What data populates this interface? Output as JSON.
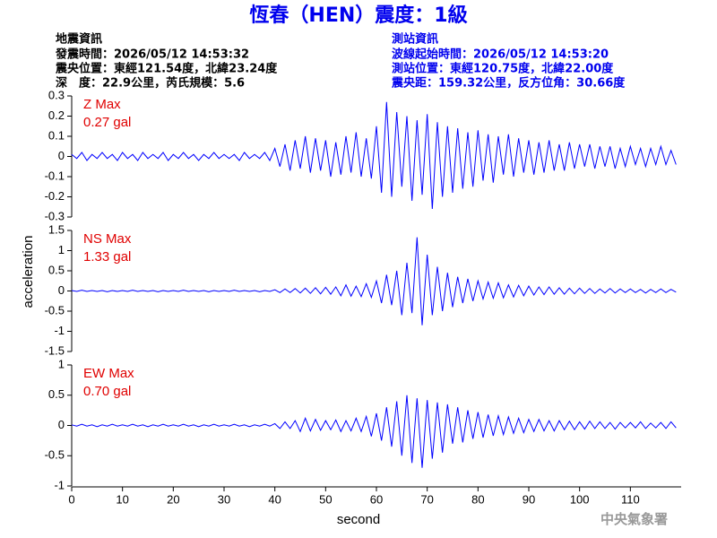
{
  "chart_data": {
    "type": "line",
    "title": "恆春（HEN）震度：1級",
    "info_left": {
      "heading": "地震資訊",
      "lines": [
        "發震時間：2026/05/12 14:53:32",
        "震央位置：東經121.54度，北緯23.24度",
        "深　度：22.9公里，芮氏規模：5.6"
      ]
    },
    "info_right": {
      "heading": "測站資訊",
      "lines": [
        "波線起始時間：2026/05/12 14:53:20",
        "測站位置：東經120.75度，北緯22.00度",
        "震央距：159.32公里，反方位角：30.66度"
      ]
    },
    "xlabel": "second",
    "ylabel": "acceleration",
    "footer": "中央氣象署",
    "xlim": [
      0,
      120
    ],
    "xticks": [
      0,
      10,
      20,
      30,
      40,
      50,
      60,
      70,
      80,
      90,
      100,
      110
    ],
    "x": [
      0,
      1,
      2,
      3,
      4,
      5,
      6,
      7,
      8,
      9,
      10,
      11,
      12,
      13,
      14,
      15,
      16,
      17,
      18,
      19,
      20,
      21,
      22,
      23,
      24,
      25,
      26,
      27,
      28,
      29,
      30,
      31,
      32,
      33,
      34,
      35,
      36,
      37,
      38,
      39,
      40,
      41,
      42,
      43,
      44,
      45,
      46,
      47,
      48,
      49,
      50,
      51,
      52,
      53,
      54,
      55,
      56,
      57,
      58,
      59,
      60,
      61,
      62,
      63,
      64,
      65,
      66,
      67,
      68,
      69,
      70,
      71,
      72,
      73,
      74,
      75,
      76,
      77,
      78,
      79,
      80,
      81,
      82,
      83,
      84,
      85,
      86,
      87,
      88,
      89,
      90,
      91,
      92,
      93,
      94,
      95,
      96,
      97,
      98,
      99,
      100,
      101,
      102,
      103,
      104,
      105,
      106,
      107,
      108,
      109,
      110,
      111,
      112,
      113,
      114,
      115,
      116,
      117,
      118,
      119
    ],
    "panels": [
      {
        "annotation": [
          "Z Max",
          "0.27 gal"
        ],
        "ylim": [
          -0.3,
          0.3
        ],
        "yticks": [
          -0.3,
          -0.2,
          -0.1,
          0,
          0.1,
          0.2,
          0.3
        ],
        "series": [
          {
            "color": "#0000ff",
            "values": [
              0.01,
              -0.01,
              0.02,
              -0.02,
              0.01,
              -0.01,
              0.02,
              -0.01,
              0.01,
              -0.02,
              0.02,
              -0.01,
              0.01,
              -0.02,
              0.02,
              -0.01,
              0.01,
              -0.01,
              0.02,
              -0.02,
              0.01,
              -0.01,
              0.02,
              -0.01,
              0.01,
              -0.02,
              0.01,
              -0.01,
              0.02,
              -0.01,
              0.01,
              -0.01,
              0.01,
              -0.02,
              0.02,
              -0.01,
              0.01,
              -0.01,
              0.02,
              -0.02,
              0.04,
              -0.05,
              0.06,
              -0.07,
              0.08,
              -0.06,
              0.1,
              -0.08,
              0.09,
              -0.07,
              0.08,
              -0.1,
              0.07,
              -0.09,
              0.1,
              -0.08,
              0.12,
              -0.1,
              0.09,
              -0.11,
              0.15,
              -0.18,
              0.27,
              -0.2,
              0.22,
              -0.15,
              0.2,
              -0.22,
              0.18,
              -0.19,
              0.21,
              -0.26,
              0.17,
              -0.2,
              0.15,
              -0.18,
              0.14,
              -0.16,
              0.12,
              -0.15,
              0.13,
              -0.12,
              0.11,
              -0.13,
              0.1,
              -0.09,
              0.11,
              -0.1,
              0.09,
              -0.08,
              0.08,
              -0.09,
              0.07,
              -0.08,
              0.08,
              -0.07,
              0.06,
              -0.07,
              0.07,
              -0.06,
              0.06,
              -0.05,
              0.06,
              -0.06,
              0.05,
              -0.05,
              0.05,
              -0.06,
              0.04,
              -0.05,
              0.05,
              -0.04,
              0.04,
              -0.05,
              0.04,
              -0.04,
              0.05,
              -0.04,
              0.03,
              -0.04
            ]
          }
        ]
      },
      {
        "annotation": [
          "NS Max",
          "1.33 gal"
        ],
        "ylim": [
          -1.5,
          1.5
        ],
        "yticks": [
          -1.5,
          -1,
          -0.5,
          0,
          0.5,
          1,
          1.5
        ],
        "series": [
          {
            "color": "#0000ff",
            "values": [
              0.01,
              -0.01,
              0.02,
              -0.01,
              0.01,
              -0.01,
              0.01,
              -0.02,
              0.01,
              -0.01,
              0.01,
              -0.01,
              0.02,
              -0.01,
              0.01,
              -0.01,
              0.01,
              -0.02,
              0.01,
              -0.01,
              0.01,
              -0.01,
              0.02,
              -0.01,
              0.01,
              -0.01,
              0.01,
              -0.02,
              0.01,
              -0.01,
              0.01,
              -0.01,
              0.02,
              -0.01,
              0.01,
              -0.01,
              0.01,
              -0.02,
              0.01,
              -0.01,
              0.03,
              -0.04,
              0.05,
              -0.04,
              0.06,
              -0.05,
              0.07,
              -0.06,
              0.08,
              -0.07,
              0.09,
              -0.08,
              0.1,
              -0.12,
              0.15,
              -0.13,
              0.12,
              -0.14,
              0.18,
              -0.16,
              0.25,
              -0.3,
              0.4,
              -0.35,
              0.5,
              -0.6,
              0.7,
              -0.55,
              1.33,
              -0.85,
              0.9,
              -0.6,
              0.6,
              -0.5,
              0.45,
              -0.4,
              0.35,
              -0.3,
              0.3,
              -0.25,
              0.25,
              -0.2,
              0.22,
              -0.18,
              0.2,
              -0.17,
              0.15,
              -0.15,
              0.14,
              -0.12,
              0.12,
              -0.1,
              0.1,
              -0.09,
              0.1,
              -0.08,
              0.08,
              -0.08,
              0.07,
              -0.07,
              0.07,
              -0.06,
              0.06,
              -0.06,
              0.05,
              -0.05,
              0.06,
              -0.05,
              0.05,
              -0.04,
              0.05,
              -0.04,
              0.04,
              -0.05,
              0.04,
              -0.04,
              0.05,
              -0.04,
              0.04,
              -0.03
            ]
          }
        ]
      },
      {
        "annotation": [
          "EW Max",
          "0.70 gal"
        ],
        "ylim": [
          -1,
          1
        ],
        "yticks": [
          -1,
          -0.5,
          0,
          0.5,
          1
        ],
        "series": [
          {
            "color": "#0000ff",
            "values": [
              0.01,
              -0.01,
              0.02,
              -0.01,
              0.01,
              -0.02,
              0.01,
              -0.01,
              0.02,
              -0.01,
              0.01,
              -0.01,
              0.02,
              -0.01,
              0.01,
              -0.02,
              0.01,
              -0.01,
              0.02,
              -0.01,
              0.01,
              -0.01,
              0.02,
              -0.01,
              0.01,
              -0.02,
              0.01,
              -0.01,
              0.02,
              -0.01,
              0.01,
              -0.01,
              0.02,
              -0.01,
              0.01,
              -0.02,
              0.01,
              -0.01,
              0.02,
              -0.01,
              0.03,
              -0.05,
              0.06,
              -0.05,
              0.08,
              -0.1,
              0.12,
              -0.09,
              0.1,
              -0.08,
              0.08,
              -0.07,
              0.09,
              -0.1,
              0.08,
              -0.09,
              0.12,
              -0.1,
              0.15,
              -0.18,
              0.2,
              -0.25,
              0.3,
              -0.35,
              0.4,
              -0.5,
              0.5,
              -0.62,
              0.45,
              -0.7,
              0.42,
              -0.55,
              0.38,
              -0.45,
              0.35,
              -0.3,
              0.3,
              -0.28,
              0.25,
              -0.22,
              0.22,
              -0.2,
              0.18,
              -0.17,
              0.16,
              -0.15,
              0.14,
              -0.13,
              0.12,
              -0.12,
              0.1,
              -0.1,
              0.1,
              -0.09,
              0.08,
              -0.09,
              0.08,
              -0.07,
              0.07,
              -0.07,
              0.06,
              -0.06,
              0.07,
              -0.05,
              0.06,
              -0.05,
              0.05,
              -0.06,
              0.05,
              -0.04,
              0.05,
              -0.04,
              0.06,
              -0.05,
              0.04,
              -0.04,
              0.05,
              -0.05,
              0.06,
              -0.04
            ]
          }
        ]
      }
    ]
  }
}
